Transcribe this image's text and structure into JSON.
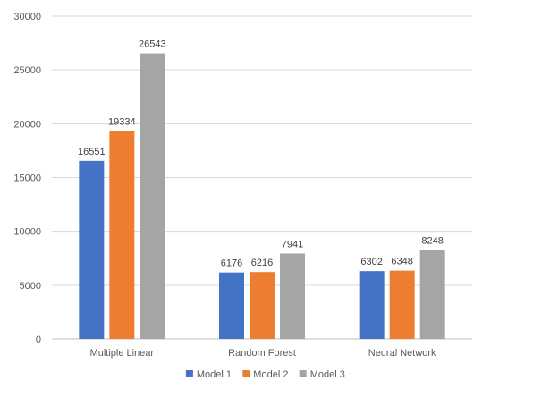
{
  "chart_data": {
    "type": "bar",
    "title": "",
    "xlabel": "",
    "ylabel": "",
    "categories": [
      "Multiple Linear",
      "Random Forest",
      "Neural Network"
    ],
    "series": [
      {
        "name": "Model 1",
        "color": "#4472c4",
        "values": [
          16551,
          6176,
          6302
        ]
      },
      {
        "name": "Model 2",
        "color": "#ed7d31",
        "values": [
          19334,
          6216,
          6348
        ]
      },
      {
        "name": "Model 3",
        "color": "#a5a5a5",
        "values": [
          26543,
          7941,
          8248
        ]
      }
    ],
    "ylim": [
      0,
      30000
    ],
    "yticks": [
      0,
      5000,
      10000,
      15000,
      20000,
      25000,
      30000
    ],
    "ytick_labels": [
      "0",
      "5000",
      "10000",
      "15000",
      "20000",
      "25000",
      "30000"
    ],
    "data_labels": [
      [
        "16551",
        "6176",
        "6302"
      ],
      [
        "19334",
        "6216",
        "6348"
      ],
      [
        "26543",
        "7941",
        "8248"
      ]
    ],
    "grid": true,
    "legend_position": "bottom"
  }
}
